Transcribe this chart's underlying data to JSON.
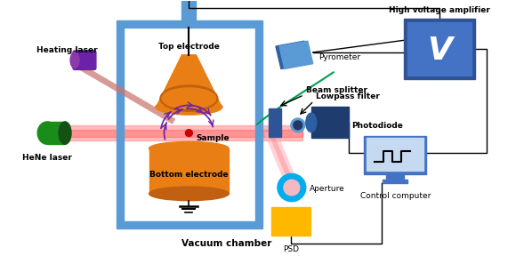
{
  "labels": {
    "heating_laser": "Heating laser",
    "hene_laser": "HeNe laser",
    "top_electrode": "Top electrode",
    "bottom_electrode": "Bottom electrode",
    "sample": "Sample",
    "vacuum_chamber": "Vacuum chamber",
    "pyrometer": "Pyrometer",
    "beam_splitter": "Beam splitter",
    "lowpass_filter": "Lowpass filter",
    "photodiode": "Photodiode",
    "aperture": "Aperture",
    "psd": "PSD",
    "control_computer": "Control computer",
    "hv_amplifier": "High voltage amplifier"
  },
  "colors": {
    "frame_blue": "#5B9BD5",
    "frame_dark": "#4472C4",
    "electrode_orange": "#E87E14",
    "electrode_dark": "#C06010",
    "laser_purple": "#6B21A8",
    "hene_green_box": "#1A8C1A",
    "hv_box_outer": "#2F5496",
    "hv_box_inner": "#4472C4",
    "photodiode_dark": "#1F3C6E",
    "photodiode_mid": "#2E5FA3",
    "computer_frame": "#4472C4",
    "computer_screen": "#C5D9F1",
    "psd_yellow": "#FFB800",
    "aperture_cyan": "#00ADEF",
    "aperture_pink": "#F4B8C1",
    "beam_splitter_col": "#4472C4",
    "pyrometer_col": "#5B9BD5",
    "sample_red": "#CC0000",
    "hene_beam_outer": "#FF9999",
    "hene_beam_inner": "#FF5555",
    "pink_beam": "#FFB6C1",
    "green_line": "#00A050",
    "arrow_purple": "#6B21A8",
    "heating_beam": "#C8736A",
    "connector_dark": "#8B1A00",
    "black": "#000000",
    "white": "#FFFFFF"
  }
}
